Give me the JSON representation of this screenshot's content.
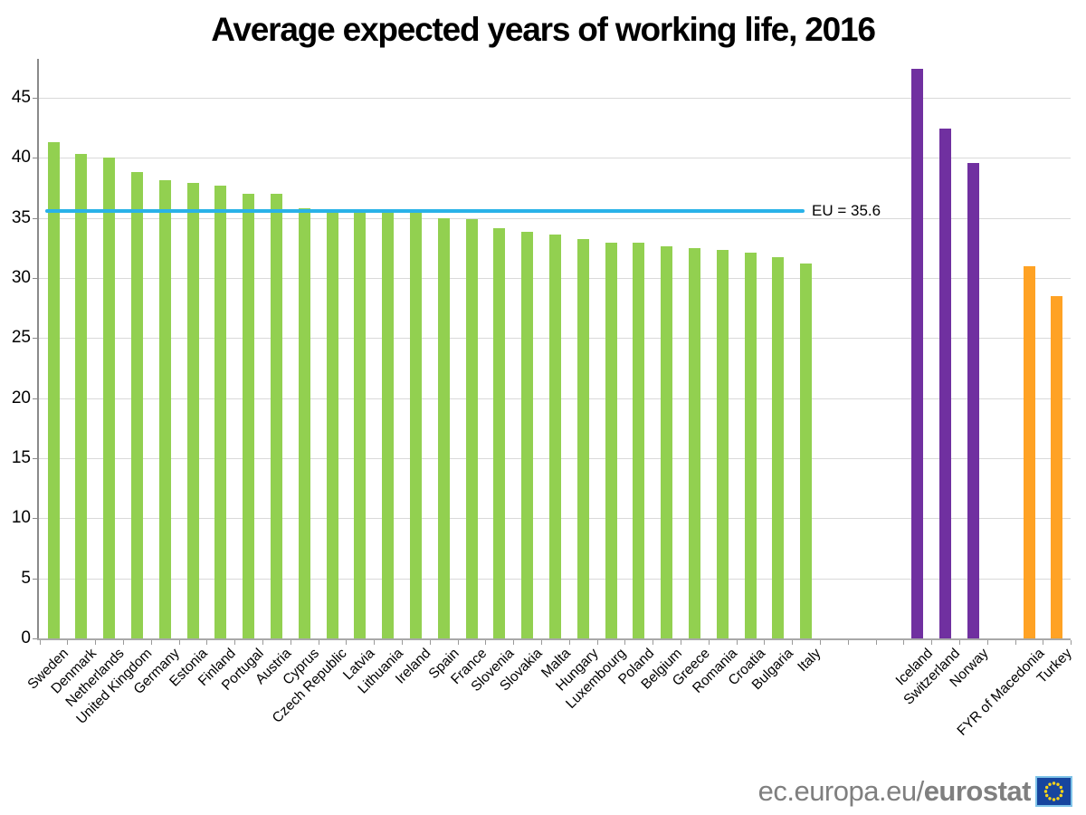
{
  "chart_data": {
    "type": "bar",
    "title": "Average expected years of working life, 2016",
    "xlabel": "",
    "ylabel": "",
    "ylim": [
      0,
      48
    ],
    "yticks": [
      0,
      5,
      10,
      15,
      20,
      25,
      30,
      35,
      40,
      45
    ],
    "grid": "horizontal",
    "total_slots": 37,
    "reference_line": {
      "label": "EU = 35.6",
      "value": 35.6,
      "color": "#29b2e8"
    },
    "series": [
      {
        "color": "#92d050",
        "slot_start": 0,
        "points": [
          {
            "label": "Sweden",
            "value": 41.3
          },
          {
            "label": "Denmark",
            "value": 40.3
          },
          {
            "label": "Netherlands",
            "value": 40.0
          },
          {
            "label": "United Kingdom",
            "value": 38.8
          },
          {
            "label": "Germany",
            "value": 38.1
          },
          {
            "label": "Estonia",
            "value": 37.9
          },
          {
            "label": "Finland",
            "value": 37.7
          },
          {
            "label": "Portugal",
            "value": 37.0
          },
          {
            "label": "Austria",
            "value": 37.0
          },
          {
            "label": "Cyprus",
            "value": 35.8
          },
          {
            "label": "Czech Republic",
            "value": 35.6
          },
          {
            "label": "Latvia",
            "value": 35.6
          },
          {
            "label": "Lithuania",
            "value": 35.5
          },
          {
            "label": "Ireland",
            "value": 35.4
          },
          {
            "label": "Spain",
            "value": 35.0
          },
          {
            "label": "France",
            "value": 34.9
          },
          {
            "label": "Slovenia",
            "value": 34.1
          },
          {
            "label": "Slovakia",
            "value": 33.8
          },
          {
            "label": "Malta",
            "value": 33.6
          },
          {
            "label": "Hungary",
            "value": 33.2
          },
          {
            "label": "Luxembourg",
            "value": 32.9
          },
          {
            "label": "Poland",
            "value": 32.9
          },
          {
            "label": "Belgium",
            "value": 32.6
          },
          {
            "label": "Greece",
            "value": 32.5
          },
          {
            "label": "Romania",
            "value": 32.3
          },
          {
            "label": "Croatia",
            "value": 32.1
          },
          {
            "label": "Bulgaria",
            "value": 31.7
          },
          {
            "label": "Italy",
            "value": 31.2
          }
        ]
      },
      {
        "color": "#7030a0",
        "slot_start": 31,
        "points": [
          {
            "label": "Iceland",
            "value": 47.4
          },
          {
            "label": "Switzerland",
            "value": 42.4
          },
          {
            "label": "Norway",
            "value": 39.6
          }
        ]
      },
      {
        "color": "#ffa224",
        "slot_start": 35,
        "points": [
          {
            "label": "FYR of Macedonia",
            "value": 31.0
          },
          {
            "label": "Turkey",
            "value": 28.5
          }
        ]
      }
    ]
  },
  "footer": {
    "url_regular": "ec.europa.eu/",
    "url_bold": "eurostat"
  },
  "colors": {
    "eu_bar": "#92d050",
    "efta_bar": "#7030a0",
    "candidate_bar": "#ffa224",
    "reference_line": "#29b2e8",
    "gridline": "#d9d9d9",
    "flag_background": "#17459e",
    "flag_stars": "#ffd617",
    "flag_border": "#7ec3e8",
    "footer_text": "#7f7f7f"
  }
}
